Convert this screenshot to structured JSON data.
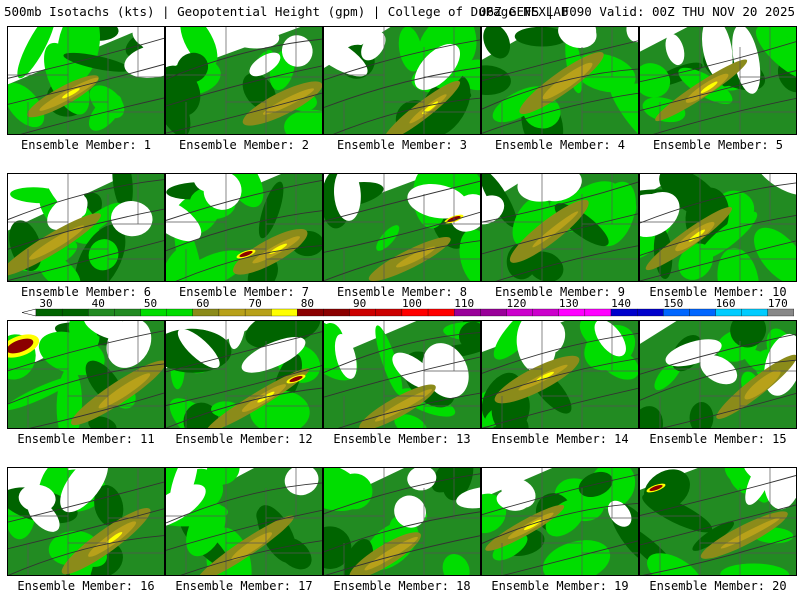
{
  "header": {
    "left": "500mb Isotachs (kts) | Geopotential Height (gpm) | College of DuPage NEXLAB",
    "right": "06Z GEFS | F090 Valid: 00Z THU NOV 20 2025"
  },
  "colors": {
    "c30": "#006400",
    "c40": "#228b22",
    "c50": "#00dd00",
    "c60": "#8b8b1a",
    "c65": "#b8a11a",
    "c70": "#ffff00",
    "c80": "#8b0000",
    "c90": "#cc0000",
    "c100": "#ff0000",
    "c110": "#990099",
    "c120": "#cc00cc",
    "c130": "#ff00ff",
    "c140": "#0000cc",
    "c150": "#0066ff",
    "c160": "#00ccff",
    "c170": "#888888"
  },
  "legend": {
    "ticks": [
      "30",
      "40",
      "50",
      "60",
      "70",
      "80",
      "90",
      "100",
      "110",
      "120",
      "130",
      "140",
      "150",
      "160",
      "170"
    ]
  },
  "panels": [
    {
      "label": "Ensemble Member: 1"
    },
    {
      "label": "Ensemble Member: 2"
    },
    {
      "label": "Ensemble Member: 3"
    },
    {
      "label": "Ensemble Member: 4"
    },
    {
      "label": "Ensemble Member: 5"
    },
    {
      "label": "Ensemble Member: 6"
    },
    {
      "label": "Ensemble Member: 7"
    },
    {
      "label": "Ensemble Member: 8"
    },
    {
      "label": "Ensemble Member: 9"
    },
    {
      "label": "Ensemble Member: 10"
    },
    {
      "label": "Ensemble Member: 11"
    },
    {
      "label": "Ensemble Member: 12"
    },
    {
      "label": "Ensemble Member: 13"
    },
    {
      "label": "Ensemble Member: 14"
    },
    {
      "label": "Ensemble Member: 15"
    },
    {
      "label": "Ensemble Member: 16"
    },
    {
      "label": "Ensemble Member: 17"
    },
    {
      "label": "Ensemble Member: 18"
    },
    {
      "label": "Ensemble Member: 19"
    },
    {
      "label": "Ensemble Member: 20"
    }
  ]
}
